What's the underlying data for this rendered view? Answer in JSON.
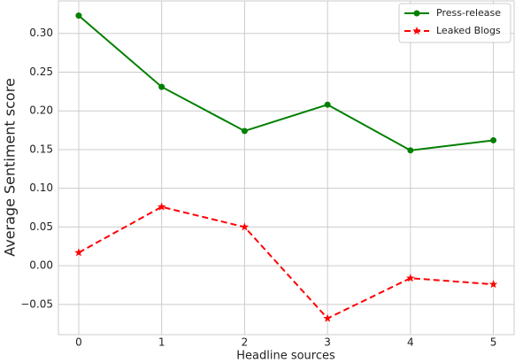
{
  "chart_data": {
    "type": "line",
    "x_label": "Headline sources",
    "y_label": "Average Sentiment score",
    "x": [
      0,
      1,
      2,
      3,
      4,
      5
    ],
    "series": [
      {
        "name": "Press-release",
        "color": "#008000",
        "style": "solid",
        "marker": "circle",
        "values": [
          0.323,
          0.231,
          0.174,
          0.208,
          0.149,
          0.162
        ]
      },
      {
        "name": "Leaked Blogs",
        "color": "#ff0000",
        "style": "dashed",
        "marker": "star",
        "values": [
          0.017,
          0.076,
          0.05,
          -0.068,
          -0.016,
          -0.024
        ]
      }
    ],
    "xlim": [
      -0.245,
      5.25
    ],
    "ylim": [
      -0.089,
      0.342
    ],
    "xticks": [
      0,
      1,
      2,
      3,
      4,
      5
    ],
    "yticks": [
      {
        "value": -0.05,
        "label": "−0.05"
      },
      {
        "value": 0,
        "label": "0.00"
      },
      {
        "value": 0.05,
        "label": "0.05"
      },
      {
        "value": 0.1,
        "label": "0.10"
      },
      {
        "value": 0.15,
        "label": "0.15"
      },
      {
        "value": 0.2,
        "label": "0.20"
      },
      {
        "value": 0.25,
        "label": "0.25"
      },
      {
        "value": 0.3,
        "label": "0.30"
      }
    ],
    "grid": true,
    "legend": "upper right"
  }
}
